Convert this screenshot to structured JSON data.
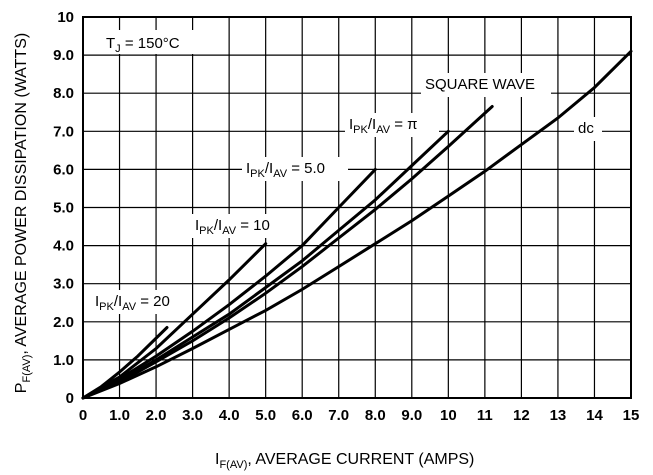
{
  "chart_data": {
    "type": "line",
    "xlabel": "I_F(AV), AVERAGE CURRENT (AMPS)",
    "ylabel": "P_F(AV), AVERAGE POWER DISSIPATION (WATTS)",
    "xlim": [
      0,
      15
    ],
    "ylim": [
      0,
      10
    ],
    "x_ticks": [
      "0",
      "1.0",
      "2.0",
      "3.0",
      "4.0",
      "5.0",
      "6.0",
      "7.0",
      "8.0",
      "9.0",
      "10",
      "11",
      "12",
      "13",
      "14",
      "15"
    ],
    "y_ticks": [
      "0",
      "1.0",
      "2.0",
      "3.0",
      "4.0",
      "5.0",
      "6.0",
      "7.0",
      "8.0",
      "9.0",
      "10"
    ],
    "grid": true,
    "condition": {
      "main": "T",
      "sub": "J",
      "rest": " = 150°C"
    },
    "series": [
      {
        "name": "I_PK/I_AV = 20",
        "label": {
          "a": "I",
          "a_sub": "PK",
          "b": "/I",
          "b_sub": "AV",
          "rest": " = 20"
        },
        "x": [
          0,
          0.5,
          1.0,
          1.5,
          2.3
        ],
        "y": [
          0,
          0.3,
          0.68,
          1.1,
          1.85
        ]
      },
      {
        "name": "I_PK/I_AV = 10",
        "label": {
          "a": "I",
          "a_sub": "PK",
          "b": "/I",
          "b_sub": "AV",
          "rest": " = 10"
        },
        "x": [
          0,
          1.0,
          2.0,
          3.0,
          4.0,
          5.0
        ],
        "y": [
          0,
          0.55,
          1.3,
          2.2,
          3.1,
          4.05
        ]
      },
      {
        "name": "I_PK/I_AV = 5.0",
        "label": {
          "a": "I",
          "a_sub": "PK",
          "b": "/I",
          "b_sub": "AV",
          "rest": " = 5.0"
        },
        "x": [
          0,
          1.0,
          2.0,
          3.0,
          4.0,
          5.0,
          6.0,
          7.0,
          8.0
        ],
        "y": [
          0,
          0.5,
          1.1,
          1.75,
          2.45,
          3.2,
          4.0,
          5.0,
          6.0
        ]
      },
      {
        "name": "I_PK/I_AV = π",
        "label": {
          "a": "I",
          "a_sub": "PK",
          "b": "/I",
          "b_sub": "AV",
          "rest": " = π"
        },
        "x": [
          0,
          1.0,
          2.0,
          3.0,
          4.0,
          5.0,
          6.0,
          7.0,
          8.0,
          9.0,
          10.0
        ],
        "y": [
          0,
          0.45,
          1.0,
          1.6,
          2.2,
          2.9,
          3.6,
          4.4,
          5.2,
          6.1,
          7.0
        ]
      },
      {
        "name": "SQUARE WAVE",
        "label": {
          "a": "SQUARE WAVE",
          "a_sub": "",
          "b": "",
          "b_sub": "",
          "rest": ""
        },
        "x": [
          0,
          1.0,
          2.0,
          3.0,
          4.0,
          5.0,
          6.0,
          7.0,
          8.0,
          9.0,
          10.0,
          11.2
        ],
        "y": [
          0,
          0.42,
          0.95,
          1.5,
          2.1,
          2.75,
          3.45,
          4.2,
          4.95,
          5.75,
          6.6,
          7.65
        ]
      },
      {
        "name": "dc",
        "label": {
          "a": "dc",
          "a_sub": "",
          "b": "",
          "b_sub": "",
          "rest": ""
        },
        "x": [
          0,
          1.0,
          2.0,
          3.0,
          4.0,
          5.0,
          6.0,
          7.0,
          8.0,
          9.0,
          10.0,
          11.0,
          12.0,
          13.0,
          14.0,
          15.0
        ],
        "y": [
          0,
          0.38,
          0.82,
          1.3,
          1.8,
          2.3,
          2.85,
          3.45,
          4.05,
          4.65,
          5.3,
          5.95,
          6.65,
          7.35,
          8.15,
          9.1
        ]
      }
    ]
  }
}
